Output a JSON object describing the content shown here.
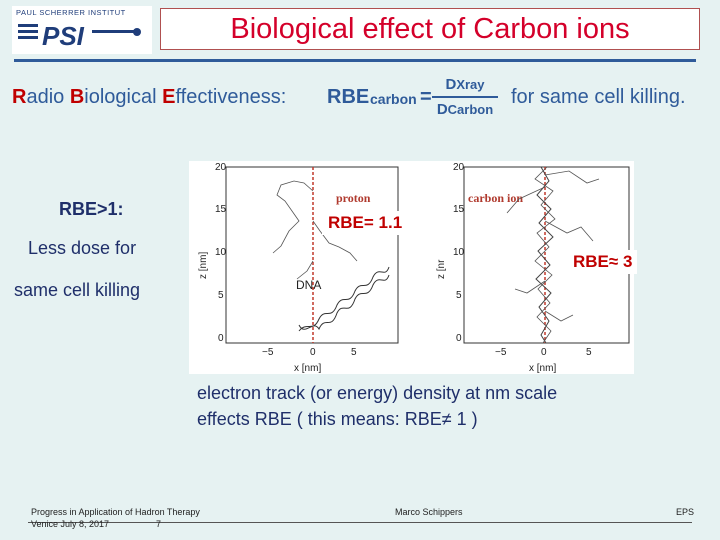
{
  "header": {
    "logo_caption": "PAUL SCHERRER INSTITUT",
    "logo_text": "PSI",
    "title": "Biological effect of Carbon ions"
  },
  "rbe_definition": {
    "r": "R",
    "adio": "adio ",
    "b": "B",
    "iological": "iological ",
    "e": "E",
    "ffectiveness": "ffectiveness:",
    "rbe": "RBE",
    "carbon": "carbon",
    "equals": "=",
    "num_main": "D",
    "num_sub": "Xray",
    "den_main": "D",
    "den_sub": "Carbon",
    "tail": "for same cell killing."
  },
  "left_panel": {
    "heading": "RBE>1:",
    "line1": "Less dose for",
    "line2": "same cell killing"
  },
  "figure": {
    "left_plot": {
      "label": "proton",
      "dna_label": "DNA",
      "y_ticks": [
        "20",
        "15",
        "10",
        "5",
        "0"
      ],
      "x_ticks": [
        "−5",
        "0",
        "5"
      ],
      "y_axis": "z [nm]",
      "x_axis": "x [nm]"
    },
    "right_plot": {
      "label": "carbon ion",
      "y_ticks": [
        "20",
        "15",
        "10",
        "5",
        "0"
      ],
      "x_ticks": [
        "−5",
        "0",
        "5"
      ],
      "y_axis": "z [nr",
      "x_axis": "x [nm]"
    }
  },
  "rbe_labels": {
    "proton": "RBE= 1.1",
    "carbon": "RBE≈ 3"
  },
  "caption": {
    "line1": "electron track (or energy) density at nm scale",
    "line2": "effects RBE ( this means: RBE≠ 1 )"
  },
  "footer": {
    "left_line1": "Progress in Application of Hadron Therapy",
    "left_line2": "Venice July 8, 2017",
    "page_number": "7",
    "author": "Marco Schippers",
    "right": "EPS"
  },
  "colors": {
    "title_red": "#d4002a",
    "accent_blue": "#2f5b9a",
    "rbe_red": "#c00000",
    "text_dark_blue": "#1f2f6a",
    "background": "#e6f2f2"
  }
}
